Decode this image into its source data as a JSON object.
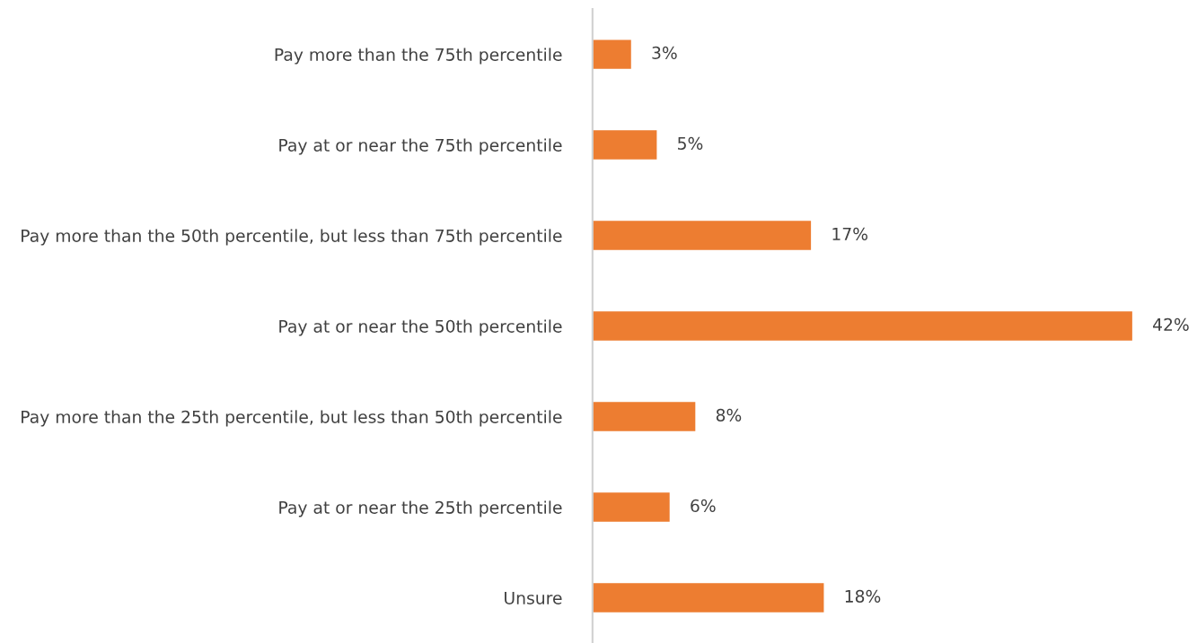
{
  "chart_data": {
    "type": "bar",
    "orientation": "horizontal",
    "categories": [
      "Pay more than the 75th percentile",
      "Pay at or near the 75th percentile",
      "Pay more than the 50th percentile, but less than 75th percentile",
      "Pay at or near the 50th percentile",
      "Pay more than the 25th percentile, but less than 50th percentile",
      "Pay at or near the 25th percentile",
      "Unsure"
    ],
    "values": [
      3,
      5,
      17,
      42,
      8,
      6,
      18
    ],
    "value_labels": [
      "3%",
      "5%",
      "17%",
      "42%",
      "8%",
      "6%",
      "18%"
    ],
    "color": "#ed7d31",
    "tick_labels": "y",
    "grid": false,
    "legend": false
  }
}
